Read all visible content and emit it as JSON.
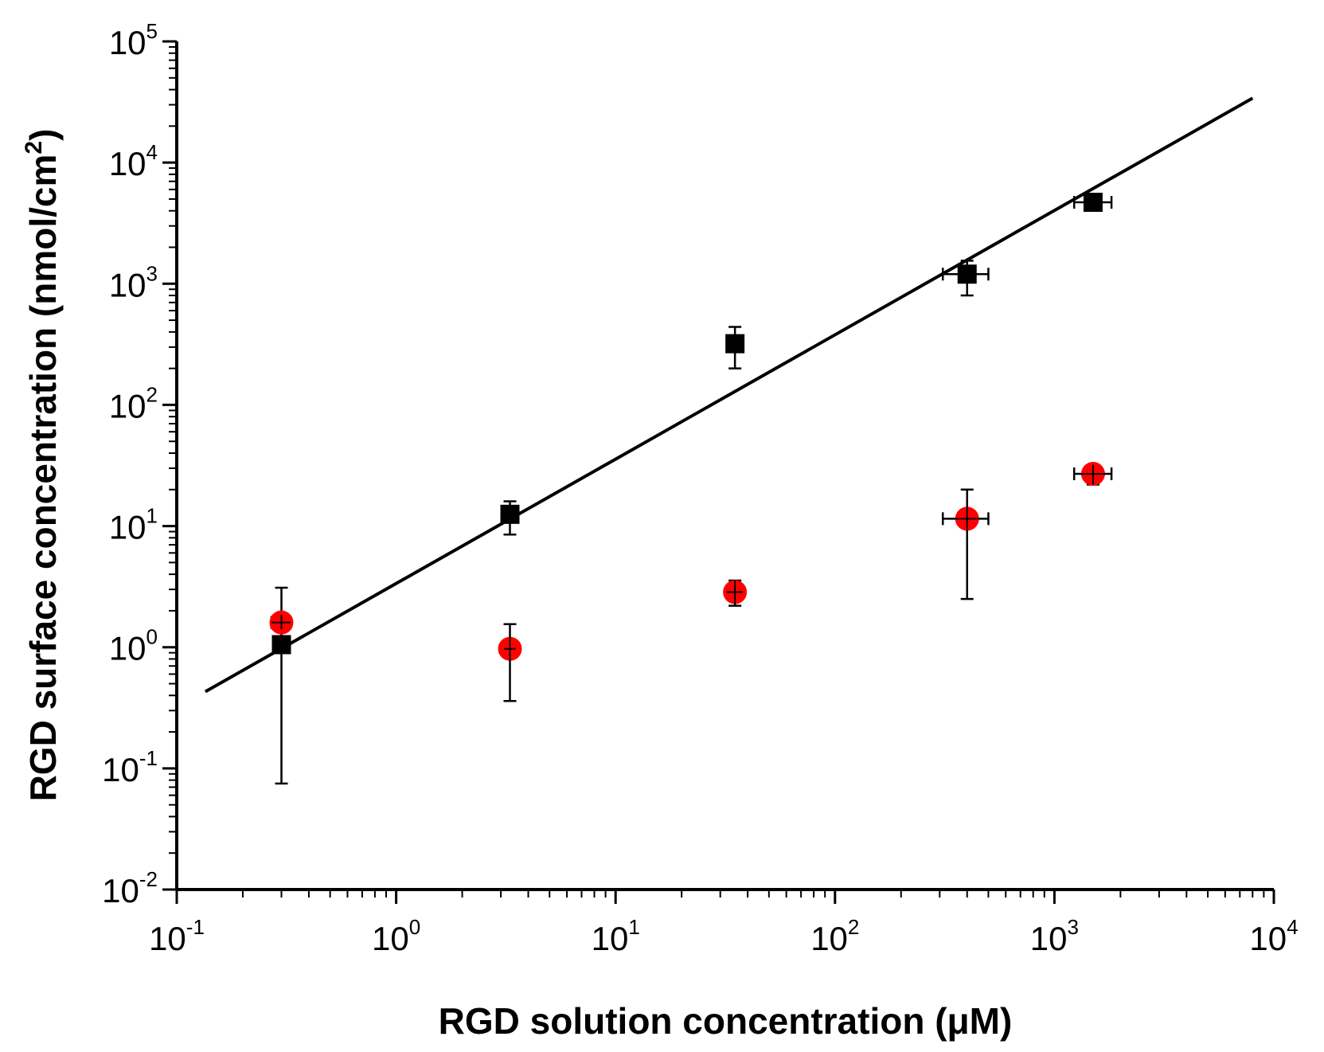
{
  "chart_data": {
    "type": "scatter",
    "title": "",
    "xlabel": "RGD solution concentration (μM)",
    "ylabel_main": "RGD surface concentration (nmol/cm",
    "ylabel_sup": "2",
    "ylabel_end": ")",
    "xscale": "log",
    "yscale": "log",
    "xlim": [
      0.1,
      10000
    ],
    "ylim": [
      0.01,
      100000
    ],
    "grid": false,
    "legend": "none",
    "colors": {
      "series1": "#000000",
      "series2": "#ff0000",
      "fit": "#000000"
    },
    "x_ticks": [
      {
        "base": "10",
        "exp": "-1",
        "value": 0.1
      },
      {
        "base": "10",
        "exp": "0",
        "value": 1
      },
      {
        "base": "10",
        "exp": "1",
        "value": 10
      },
      {
        "base": "10",
        "exp": "2",
        "value": 100
      },
      {
        "base": "10",
        "exp": "3",
        "value": 1000
      },
      {
        "base": "10",
        "exp": "4",
        "value": 10000
      }
    ],
    "y_ticks": [
      {
        "base": "10",
        "exp": "-2",
        "value": 0.01
      },
      {
        "base": "10",
        "exp": "-1",
        "value": 0.1
      },
      {
        "base": "10",
        "exp": "0",
        "value": 1
      },
      {
        "base": "10",
        "exp": "1",
        "value": 10
      },
      {
        "base": "10",
        "exp": "2",
        "value": 100
      },
      {
        "base": "10",
        "exp": "3",
        "value": 1000
      },
      {
        "base": "10",
        "exp": "4",
        "value": 10000
      },
      {
        "base": "10",
        "exp": "5",
        "value": 100000
      }
    ],
    "series": [
      {
        "name": "black squares",
        "marker": "square",
        "color": "#000000",
        "points": [
          {
            "x": 0.3,
            "y": 1.05,
            "y_low": 0.075,
            "y_high": 3.1,
            "x_low": 0.3,
            "x_high": 0.3
          },
          {
            "x": 3.3,
            "y": 12.5,
            "y_low": 8.5,
            "y_high": 16,
            "x_low": 3.3,
            "x_high": 3.3
          },
          {
            "x": 35,
            "y": 320,
            "y_low": 200,
            "y_high": 440,
            "x_low": 35,
            "x_high": 35
          },
          {
            "x": 400,
            "y": 1200,
            "y_low": 800,
            "y_high": 1550,
            "x_low": 310,
            "x_high": 500
          },
          {
            "x": 1500,
            "y": 4700,
            "y_low": 4300,
            "y_high": 5100,
            "x_low": 1230,
            "x_high": 1820
          }
        ]
      },
      {
        "name": "red circles",
        "marker": "circle",
        "color": "#ff0000",
        "points": [
          {
            "x": 0.3,
            "y": 1.6,
            "y_low": 1.4,
            "y_high": 1.85,
            "x_low": 0.27,
            "x_high": 0.33
          },
          {
            "x": 3.3,
            "y": 0.97,
            "y_low": 0.36,
            "y_high": 1.55,
            "x_low": 3.1,
            "x_high": 3.5
          },
          {
            "x": 35,
            "y": 2.85,
            "y_low": 2.2,
            "y_high": 3.55,
            "x_low": 32,
            "x_high": 38
          },
          {
            "x": 400,
            "y": 11.5,
            "y_low": 2.5,
            "y_high": 20,
            "x_low": 310,
            "x_high": 500
          },
          {
            "x": 1500,
            "y": 27,
            "y_low": 22,
            "y_high": 32,
            "x_low": 1230,
            "x_high": 1820
          }
        ]
      }
    ],
    "fit_line": {
      "x": [
        0.135,
        8000
      ],
      "y": [
        0.43,
        34000
      ]
    }
  }
}
